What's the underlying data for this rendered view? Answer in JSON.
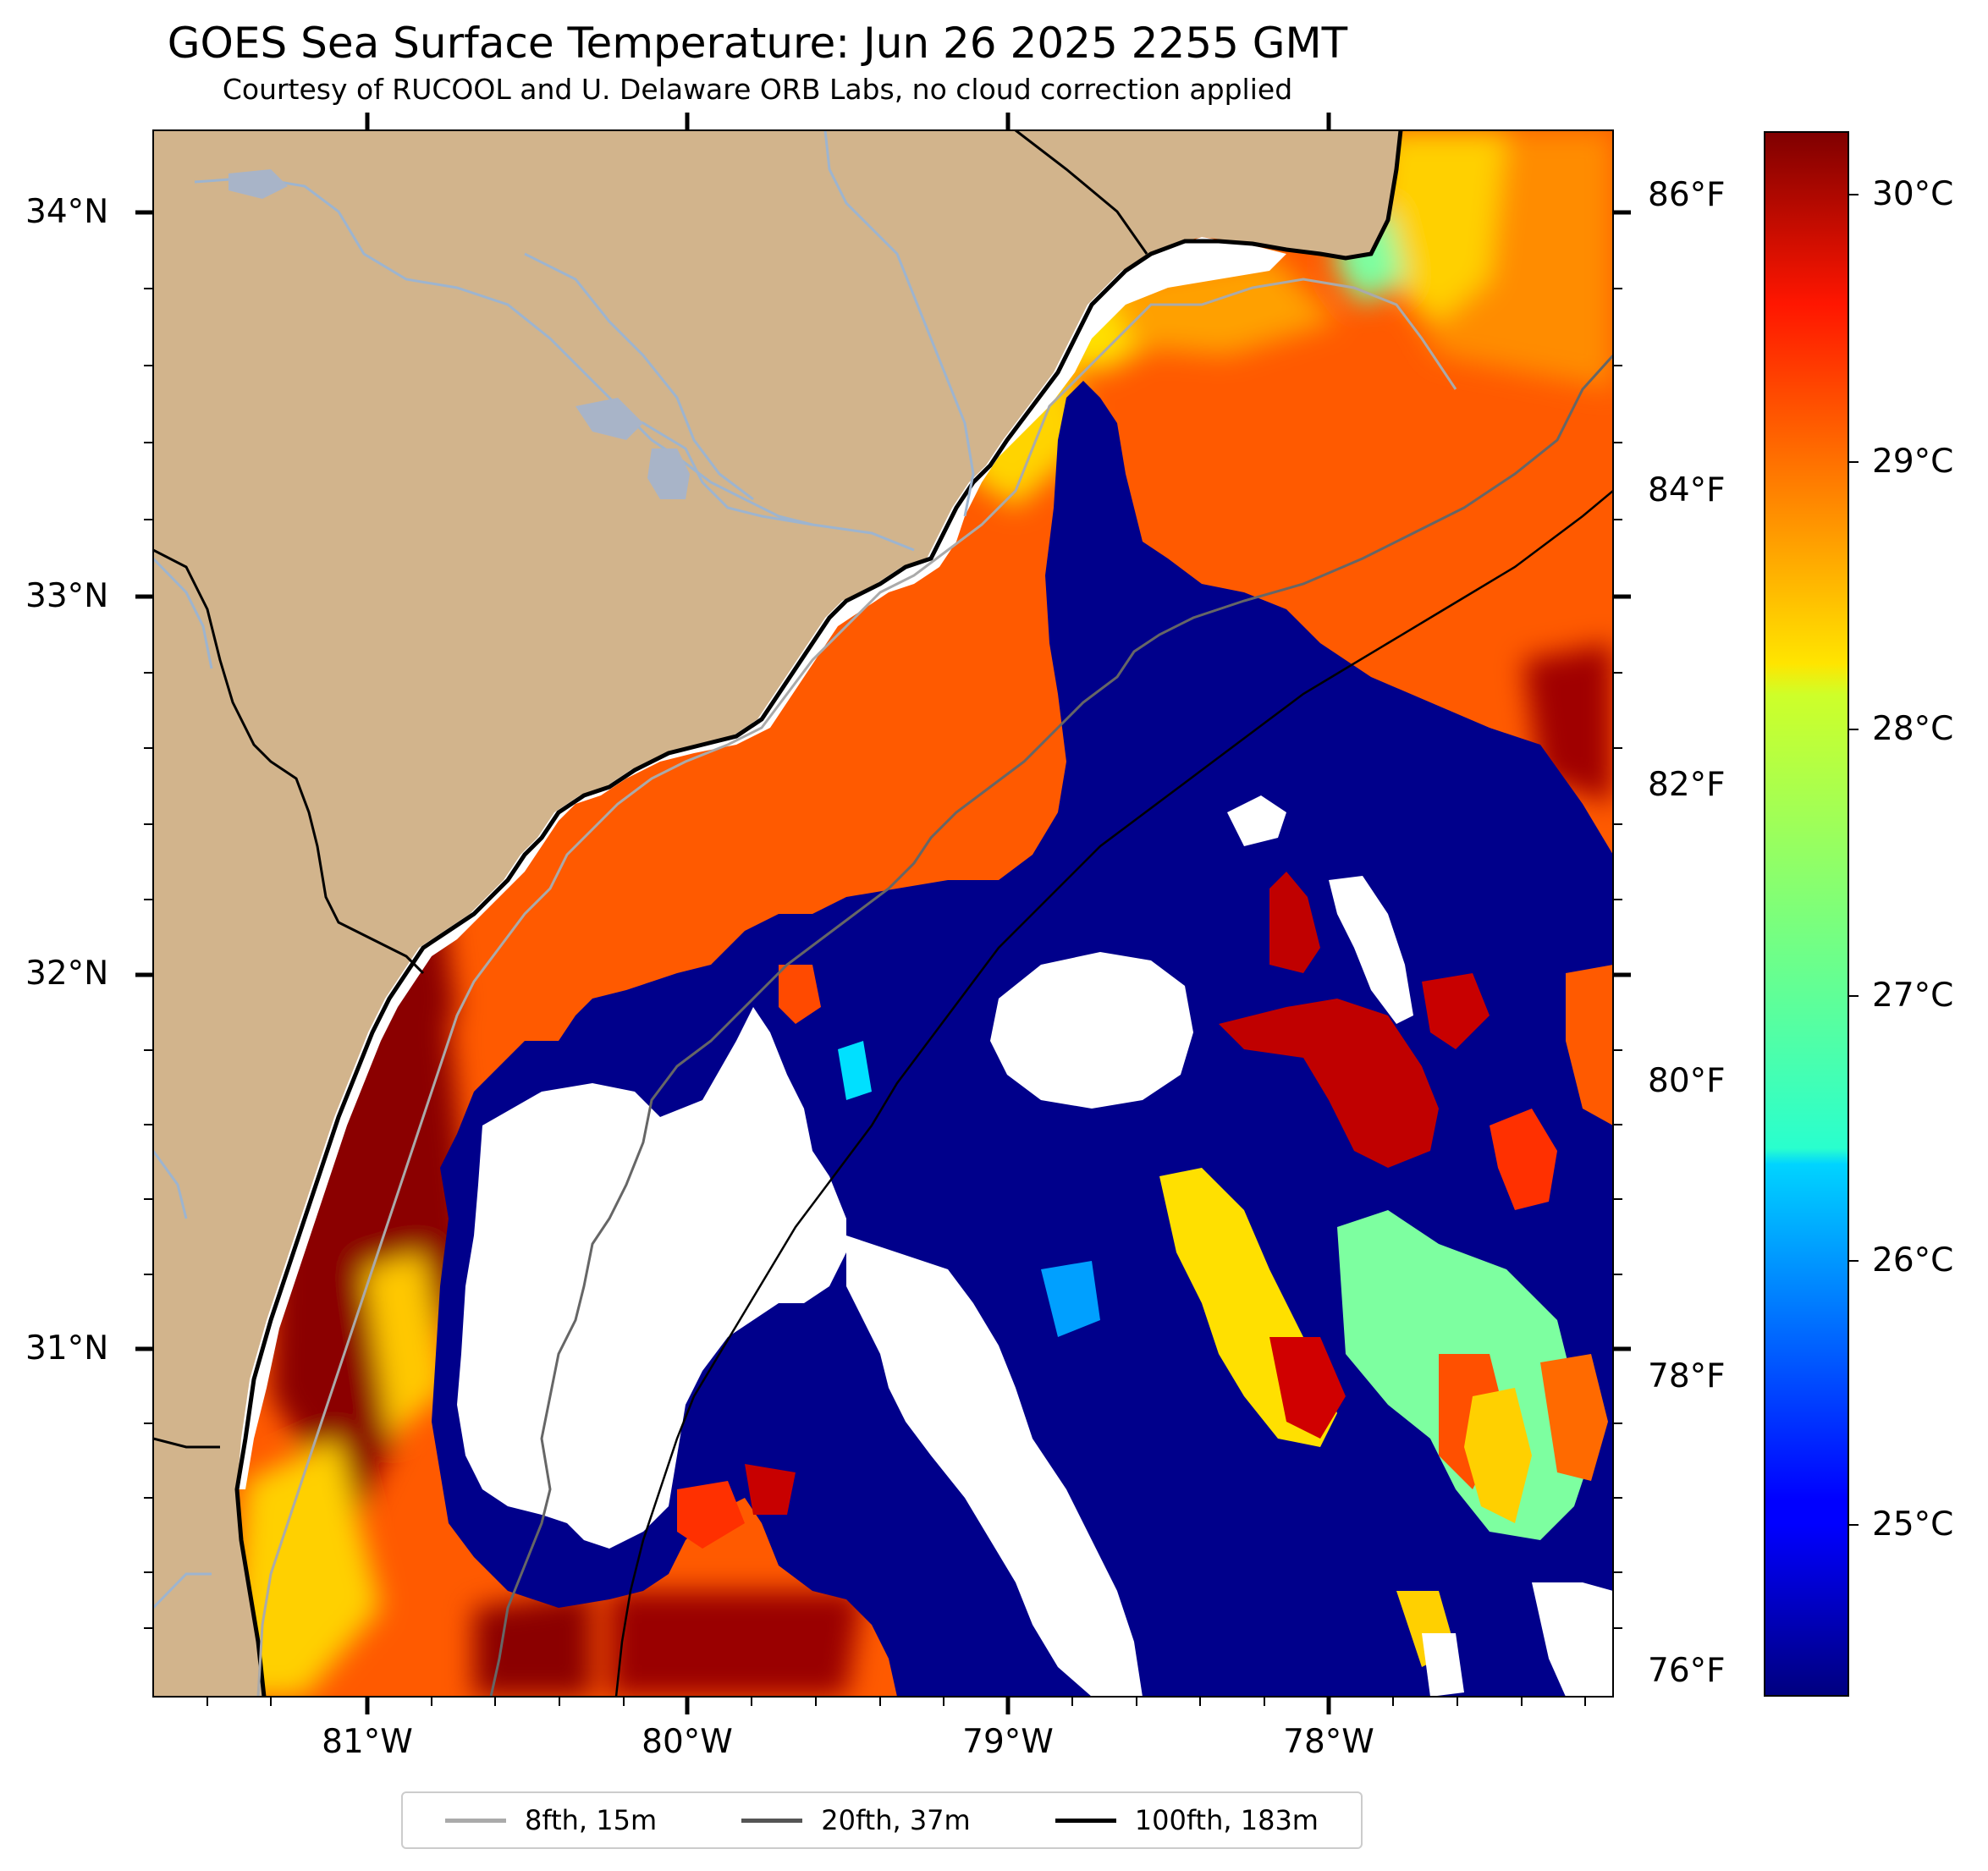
{
  "title": "GOES Sea Surface Temperature: Jun 26 2025 2255 GMT",
  "subtitle": "Courtesy of RUCOOL and U. Delaware ORB Labs, no cloud correction applied",
  "lat_ticks": [
    "34°N",
    "33°N",
    "32°N",
    "31°N"
  ],
  "lon_ticks": [
    "81°W",
    "80°W",
    "79°W",
    "78°W"
  ],
  "fahrenheit_ticks": [
    "86°F",
    "84°F",
    "82°F",
    "80°F",
    "78°F",
    "76°F"
  ],
  "colorbar_ticks": [
    "30°C",
    "29°C",
    "28°C",
    "27°C",
    "26°C",
    "25°C"
  ],
  "colorbar_colormap": "jet",
  "legend": {
    "items": [
      {
        "label": "8fth, 15m",
        "color": "#aaaaaa"
      },
      {
        "label": "20fth, 37m",
        "color": "#555555"
      },
      {
        "label": "100fth, 183m",
        "color": "#000000"
      }
    ]
  },
  "colors": {
    "land": "#d2b48c",
    "cold_water": "#00008b",
    "clouds": "#ffffff",
    "rivers": "#9db4cf"
  }
}
